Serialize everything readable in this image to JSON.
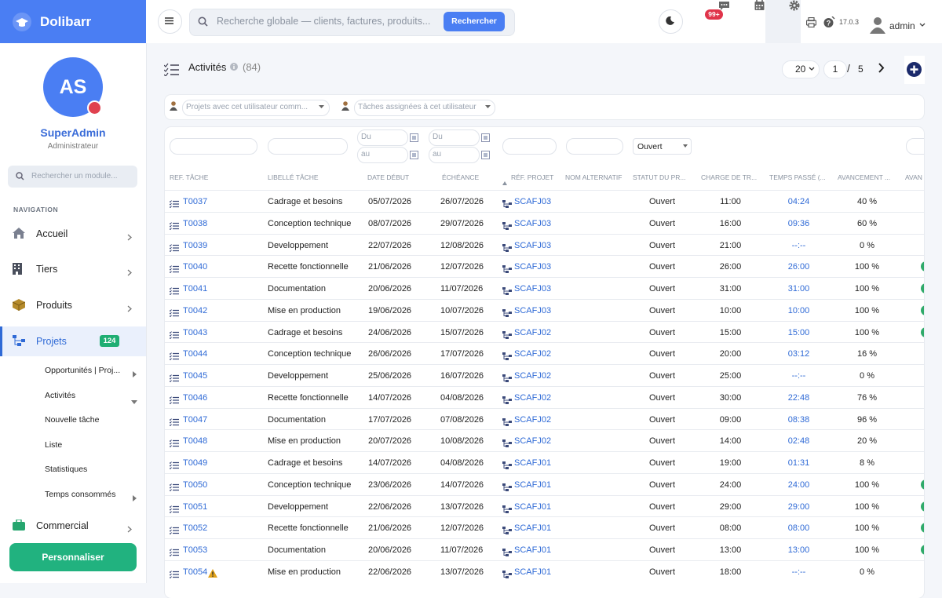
{
  "brand": "Dolibarr",
  "user": {
    "initials": "AS",
    "name": "SuperAdmin",
    "role": "Administrateur"
  },
  "sidebar": {
    "search_placeholder": "Rechercher un module...",
    "section": "NAVIGATION",
    "menu": [
      {
        "label": "Accueil"
      },
      {
        "label": "Tiers"
      },
      {
        "label": "Produits"
      },
      {
        "label": "Projets",
        "badge": "124"
      },
      {
        "label": "Commercial"
      }
    ],
    "submenu": [
      "Opportunités | Proj...",
      "Activités",
      "Nouvelle tâche",
      "Liste",
      "Statistiques",
      "Temps consommés"
    ],
    "button": "Personnaliser"
  },
  "topbar": {
    "search_placeholder": "Recherche globale — clients, factures, produits...",
    "search_button": "Rechercher",
    "notifications": "99+",
    "version": "17.0.3",
    "username": "admin"
  },
  "page": {
    "title": "Activités",
    "count": "(84)",
    "pagination": {
      "per_page": "20",
      "page": "1",
      "separator": "/",
      "pages": "5"
    }
  },
  "filters": {
    "project_user": "Projets avec cet utilisateur comm...",
    "task_user": "Tâches assignées à cet utilisateur",
    "date_from": "Du",
    "date_to": "au",
    "status": "Ouvert"
  },
  "table": {
    "columns": [
      "REF. TÂCHE",
      "LIBELLÉ TÂCHE",
      "DATE DÉBUT",
      "ÉCHÉANCE",
      "RÉF. PROJET",
      "NOM ALTERNATIF",
      "STATUT DU PR...",
      "CHARGE DE TR...",
      "TEMPS PASSÉ (...",
      "AVANCEMENT ...",
      "AVAN"
    ],
    "rows": [
      {
        "ref": "T0037",
        "label": "Cadrage et besoins",
        "start": "05/07/2026",
        "end": "26/07/2026",
        "project": "SCAFJ03",
        "status": "Ouvert",
        "charge": "11:00",
        "spent": "04:24",
        "progress": "40 %"
      },
      {
        "ref": "T0038",
        "label": "Conception technique",
        "start": "08/07/2026",
        "end": "29/07/2026",
        "project": "SCAFJ03",
        "status": "Ouvert",
        "charge": "16:00",
        "spent": "09:36",
        "progress": "60 %"
      },
      {
        "ref": "T0039",
        "label": "Developpement",
        "start": "22/07/2026",
        "end": "12/08/2026",
        "project": "SCAFJ03",
        "status": "Ouvert",
        "charge": "21:00",
        "spent": "--:--",
        "progress": "0 %"
      },
      {
        "ref": "T0040",
        "label": "Recette fonctionnelle",
        "start": "21/06/2026",
        "end": "12/07/2026",
        "project": "SCAFJ03",
        "status": "Ouvert",
        "charge": "26:00",
        "spent": "26:00",
        "progress": "100 %"
      },
      {
        "ref": "T0041",
        "label": "Documentation",
        "start": "20/06/2026",
        "end": "11/07/2026",
        "project": "SCAFJ03",
        "status": "Ouvert",
        "charge": "31:00",
        "spent": "31:00",
        "progress": "100 %"
      },
      {
        "ref": "T0042",
        "label": "Mise en production",
        "start": "19/06/2026",
        "end": "10/07/2026",
        "project": "SCAFJ03",
        "status": "Ouvert",
        "charge": "10:00",
        "spent": "10:00",
        "progress": "100 %"
      },
      {
        "ref": "T0043",
        "label": "Cadrage et besoins",
        "start": "24/06/2026",
        "end": "15/07/2026",
        "project": "SCAFJ02",
        "status": "Ouvert",
        "charge": "15:00",
        "spent": "15:00",
        "progress": "100 %"
      },
      {
        "ref": "T0044",
        "label": "Conception technique",
        "start": "26/06/2026",
        "end": "17/07/2026",
        "project": "SCAFJ02",
        "status": "Ouvert",
        "charge": "20:00",
        "spent": "03:12",
        "progress": "16 %"
      },
      {
        "ref": "T0045",
        "label": "Developpement",
        "start": "25/06/2026",
        "end": "16/07/2026",
        "project": "SCAFJ02",
        "status": "Ouvert",
        "charge": "25:00",
        "spent": "--:--",
        "progress": "0 %"
      },
      {
        "ref": "T0046",
        "label": "Recette fonctionnelle",
        "start": "14/07/2026",
        "end": "04/08/2026",
        "project": "SCAFJ02",
        "status": "Ouvert",
        "charge": "30:00",
        "spent": "22:48",
        "progress": "76 %"
      },
      {
        "ref": "T0047",
        "label": "Documentation",
        "start": "17/07/2026",
        "end": "07/08/2026",
        "project": "SCAFJ02",
        "status": "Ouvert",
        "charge": "09:00",
        "spent": "08:38",
        "progress": "96 %"
      },
      {
        "ref": "T0048",
        "label": "Mise en production",
        "start": "20/07/2026",
        "end": "10/08/2026",
        "project": "SCAFJ02",
        "status": "Ouvert",
        "charge": "14:00",
        "spent": "02:48",
        "progress": "20 %"
      },
      {
        "ref": "T0049",
        "label": "Cadrage et besoins",
        "start": "14/07/2026",
        "end": "04/08/2026",
        "project": "SCAFJ01",
        "status": "Ouvert",
        "charge": "19:00",
        "spent": "01:31",
        "progress": "8 %"
      },
      {
        "ref": "T0050",
        "label": "Conception technique",
        "start": "23/06/2026",
        "end": "14/07/2026",
        "project": "SCAFJ01",
        "status": "Ouvert",
        "charge": "24:00",
        "spent": "24:00",
        "progress": "100 %"
      },
      {
        "ref": "T0051",
        "label": "Developpement",
        "start": "22/06/2026",
        "end": "13/07/2026",
        "project": "SCAFJ01",
        "status": "Ouvert",
        "charge": "29:00",
        "spent": "29:00",
        "progress": "100 %"
      },
      {
        "ref": "T0052",
        "label": "Recette fonctionnelle",
        "start": "21/06/2026",
        "end": "12/07/2026",
        "project": "SCAFJ01",
        "status": "Ouvert",
        "charge": "08:00",
        "spent": "08:00",
        "progress": "100 %"
      },
      {
        "ref": "T0053",
        "label": "Documentation",
        "start": "20/06/2026",
        "end": "11/07/2026",
        "project": "SCAFJ01",
        "status": "Ouvert",
        "charge": "13:00",
        "spent": "13:00",
        "progress": "100 %"
      },
      {
        "ref": "T0054",
        "label": "Mise en production",
        "start": "22/06/2026",
        "end": "13/07/2026",
        "project": "SCAFJ01",
        "status": "Ouvert",
        "charge": "18:00",
        "spent": "--:--",
        "progress": "0 %",
        "warning": true
      }
    ]
  }
}
